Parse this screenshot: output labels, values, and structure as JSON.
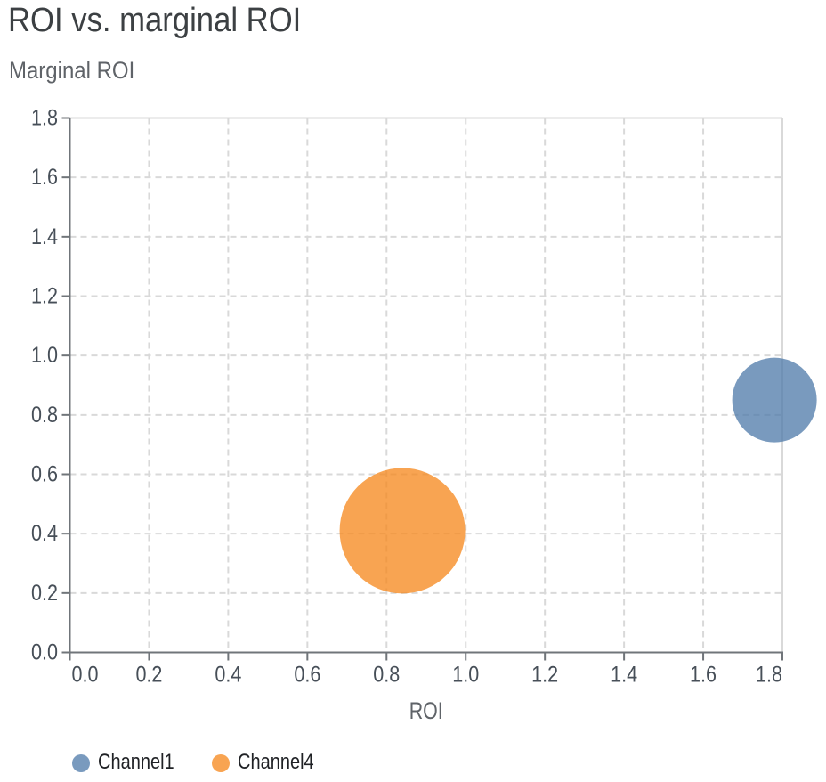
{
  "chart_data": {
    "type": "scatter",
    "title": "ROI vs. marginal ROI",
    "xlabel": "ROI",
    "ylabel": "Marginal ROI",
    "xlim": [
      0.0,
      1.8
    ],
    "ylim": [
      0.0,
      1.8
    ],
    "x_ticks": [
      0.0,
      0.2,
      0.4,
      0.6,
      0.8,
      1.0,
      1.2,
      1.4,
      1.6,
      1.8
    ],
    "y_ticks": [
      0.0,
      0.2,
      0.4,
      0.6,
      0.8,
      1.0,
      1.2,
      1.4,
      1.6,
      1.8
    ],
    "tick_decimals": 1,
    "grid": "dashed",
    "legend_position": "bottom-left",
    "mark_opacity": 0.75,
    "series": [
      {
        "name": "Channel1",
        "x": 1.78,
        "y": 0.85,
        "radius_px": 47.5,
        "color": "#4c78a8"
      },
      {
        "name": "Channel4",
        "x": 0.84,
        "y": 0.41,
        "radius_px": 70.5,
        "color": "#f58518"
      }
    ]
  },
  "colors": {
    "background": "#ffffff",
    "title": "#3c4043",
    "axis_title": "#5f6368",
    "tick_label": "#474f58",
    "axis_line": "#70757a",
    "gridline": "#d9d9d9",
    "plot_border": "#d9d9d9",
    "legend_label": "#1f2125"
  }
}
